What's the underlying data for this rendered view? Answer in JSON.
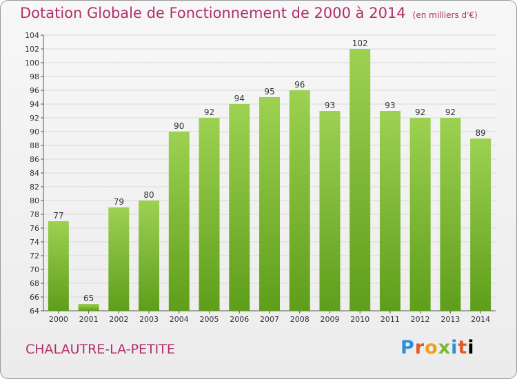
{
  "header": {
    "title": "Dotation Globale de Fonctionnement de 2000 à 2014",
    "unit": "(en milliers d'€)"
  },
  "footer": {
    "commune": "CHALAUTRE-LA-PETITE",
    "logo_text": "Proxiti"
  },
  "colors": {
    "title": "#b0306a",
    "bar_top": "#9dd152",
    "bar_bottom": "#5e9e1a",
    "grid": "#d9d9d9"
  },
  "chart_data": {
    "type": "bar",
    "categories": [
      "2000",
      "2001",
      "2002",
      "2003",
      "2004",
      "2005",
      "2006",
      "2007",
      "2008",
      "2009",
      "2010",
      "2011",
      "2012",
      "2013",
      "2014"
    ],
    "values": [
      77,
      65,
      79,
      80,
      90,
      92,
      94,
      95,
      96,
      93,
      102,
      93,
      92,
      92,
      89
    ],
    "ylim": [
      64,
      104
    ],
    "yticks": [
      64,
      66,
      68,
      70,
      72,
      74,
      76,
      78,
      80,
      82,
      84,
      86,
      88,
      90,
      92,
      94,
      96,
      98,
      100,
      102,
      104
    ],
    "grid": true,
    "xlabel": "",
    "ylabel": ""
  }
}
